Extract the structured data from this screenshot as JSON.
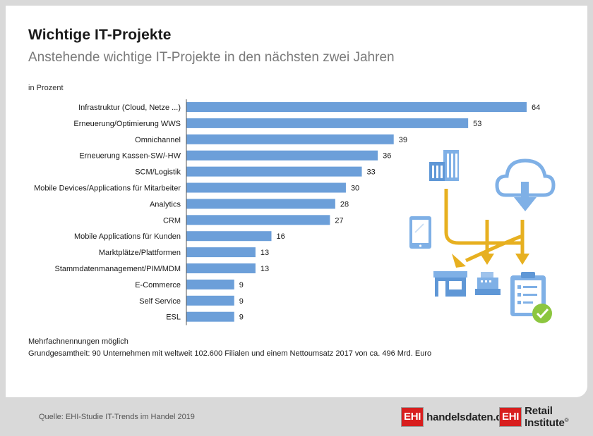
{
  "header": {
    "title": "Wichtige IT-Projekte",
    "subtitle": "Anstehende wichtige IT-Projekte in den nächsten zwei Jahren",
    "unit": "in Prozent"
  },
  "chart_data": {
    "type": "bar",
    "orientation": "horizontal",
    "categories": [
      "Infrastruktur (Cloud, Netze ...)",
      "Erneuerung/Optimierung WWS",
      "Omnichannel",
      "Erneuerung Kassen-SW/-HW",
      "SCM/Logistik",
      "Mobile Devices/Applications für Mitarbeiter",
      "Analytics",
      "CRM",
      "Mobile Applications für Kunden",
      "Marktplätze/Plattformen",
      "Stammdatenmanagement/PIM/MDM",
      "E-Commerce",
      "Self Service",
      "ESL"
    ],
    "values": [
      64,
      53,
      39,
      36,
      33,
      30,
      28,
      27,
      16,
      13,
      13,
      9,
      9,
      9
    ],
    "xlim": [
      0,
      64
    ],
    "grid": false,
    "bar_color": "#6c9fd9"
  },
  "notes": {
    "line1": "Mehrfachnennungen möglich",
    "line2": "Grundgesamtheit: 90 Unternehmen mit weltweit 102.600 Filialen und einem Nettoumsatz 2017 von ca. 496 Mrd. Euro"
  },
  "footer": {
    "source": "Quelle: EHI-Studie IT-Trends im Handel 2019",
    "logo1_badge": "EHI",
    "logo1_text": "handelsdaten.de",
    "logo2_badge": "EHI",
    "logo2_text": "Retail Institute",
    "logo2_mark": "®"
  },
  "illustration": {
    "icons": [
      "office-building-icon",
      "cloud-download-icon",
      "tablet-icon",
      "store-icon",
      "cash-register-icon",
      "clipboard-check-icon"
    ],
    "colors": {
      "blue": "#7fb0e6",
      "gold": "#e7b020",
      "green": "#8cc63f"
    }
  }
}
